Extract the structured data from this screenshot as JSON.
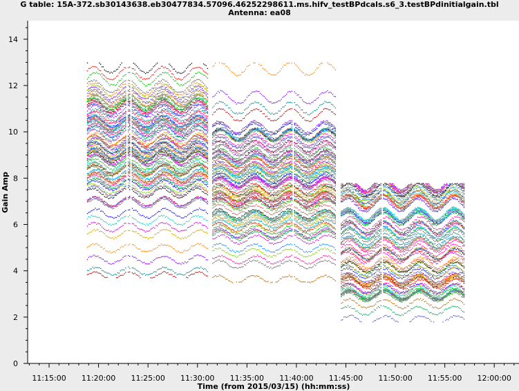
{
  "window": {
    "title_line1": "G table: 15A-372.sb30143638.eb30477834.57096.46252298611.ms.hifv_testBPdcals.s6_3.testBPdinitialgain.tbl",
    "title_line2": "Antenna: ea08"
  },
  "chart_data": {
    "type": "scatter",
    "title": "G table: 15A-372.sb30143638.eb30477834.57096.46252298611.ms.hifv_testBPdcals.s6_3.testBPdinitialgain.tbl",
    "subtitle": "Antenna: ea08",
    "xlabel": "Time (from 2015/03/15) (hh:mm:ss)",
    "ylabel": "Gain Amp",
    "x_ticks": [
      "11:15:00",
      "11:20:00",
      "11:25:00",
      "11:30:00",
      "11:35:00",
      "11:40:00",
      "11:45:00",
      "11:50:00",
      "11:55:00",
      "12:00:00"
    ],
    "y_ticks": [
      "0",
      "2",
      "4",
      "6",
      "8",
      "10",
      "12",
      "14"
    ],
    "xlim": [
      "11:12:50",
      "12:02:30"
    ],
    "ylim": [
      0,
      14.8
    ],
    "grid": false,
    "legend": "none",
    "scans": [
      {
        "start": "11:18:50",
        "end": "11:31:05",
        "amp_min": 3.7,
        "amp_max": 13.0,
        "bands_sparse_above": [
          12.85,
          12.55,
          12.3
        ],
        "bands_sparse_below": [
          6.5,
          6.2,
          5.9,
          5.6,
          5.0,
          4.5,
          4.0,
          3.8
        ],
        "dense_range": [
          6.9,
          12.0
        ],
        "gap_times": [
          "11:22:50",
          "11:23:15"
        ]
      },
      {
        "start": "11:31:30",
        "end": "11:44:00",
        "amp_min": 3.5,
        "amp_max": 13.0,
        "bands_sparse_above": [
          12.75,
          11.5,
          11.05,
          10.75
        ],
        "bands_sparse_below": [
          5.0,
          4.8,
          4.5,
          4.3,
          3.65
        ],
        "dense_range": [
          5.3,
          10.3
        ],
        "gap_times": [
          "11:39:40"
        ]
      },
      {
        "start": "11:44:30",
        "end": "11:57:00",
        "amp_min": 1.8,
        "amp_max": 7.8,
        "bands_sparse_above": [],
        "bands_sparse_below": [
          2.9,
          2.6,
          2.3,
          1.9
        ],
        "dense_range": [
          2.9,
          7.8
        ],
        "gap_times": [
          "11:48:40"
        ]
      }
    ],
    "series_colors": [
      "#000000",
      "#ff0000",
      "#00b400",
      "#0000ff",
      "#00c8c8",
      "#c800c8",
      "#c8a000",
      "#ff8000",
      "#8000ff",
      "#008080",
      "#a00000",
      "#0080ff",
      "#80c800",
      "#ff00a0",
      "#606060",
      "#b46400",
      "#00a050",
      "#5050c8",
      "#c85050",
      "#50a0a0"
    ]
  }
}
